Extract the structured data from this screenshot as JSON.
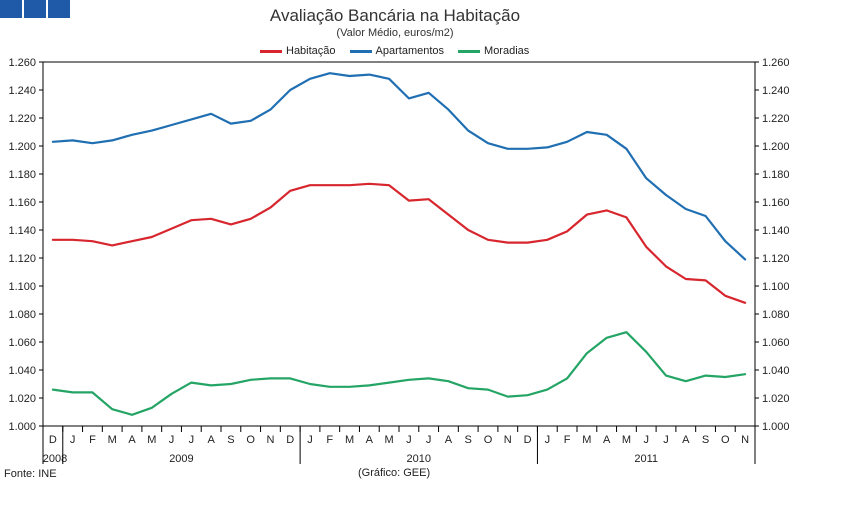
{
  "header": {
    "title": "Avaliação Bancária na Habitação",
    "subtitle": "(Valor Médio, euros/m2)"
  },
  "footer": {
    "source": "Fonte: INE",
    "credit": "(Gráfico: GEE)"
  },
  "colors": {
    "habitacao": "#d7262d",
    "apartamentos": "#1f6fb2",
    "moradias": "#24a566"
  },
  "chart_data": {
    "type": "line",
    "title": "Avaliação Bancária na Habitação",
    "subtitle": "(Valor Médio, euros/m2)",
    "xlabel": "",
    "ylabel": "",
    "ylim": [
      1000,
      1260
    ],
    "yticks": [
      1000,
      1020,
      1040,
      1060,
      1080,
      1100,
      1120,
      1140,
      1160,
      1180,
      1200,
      1220,
      1240,
      1260
    ],
    "ytick_labels": [
      "1.000",
      "1.020",
      "1.040",
      "1.060",
      "1.080",
      "1.100",
      "1.120",
      "1.140",
      "1.160",
      "1.180",
      "1.200",
      "1.220",
      "1.240",
      "1.260"
    ],
    "categories": [
      "D",
      "J",
      "F",
      "M",
      "A",
      "M",
      "J",
      "J",
      "A",
      "S",
      "O",
      "N",
      "D",
      "J",
      "F",
      "M",
      "A",
      "M",
      "J",
      "J",
      "A",
      "S",
      "O",
      "N",
      "D",
      "J",
      "F",
      "M",
      "A",
      "M",
      "J",
      "J",
      "A",
      "S",
      "O",
      "N"
    ],
    "years": [
      {
        "label": "2008",
        "start": 0,
        "end": 0
      },
      {
        "label": "2009",
        "start": 1,
        "end": 12
      },
      {
        "label": "2010",
        "start": 13,
        "end": 24
      },
      {
        "label": "2011",
        "start": 25,
        "end": 35
      }
    ],
    "legend_position": "top",
    "grid": false,
    "series": [
      {
        "name": "Habitação",
        "color_key": "habitacao",
        "values": [
          1133,
          1133,
          1132,
          1129,
          1132,
          1135,
          1141,
          1147,
          1148,
          1144,
          1148,
          1156,
          1168,
          1172,
          1172,
          1172,
          1173,
          1172,
          1161,
          1162,
          1151,
          1140,
          1133,
          1131,
          1131,
          1133,
          1139,
          1151,
          1154,
          1149,
          1128,
          1114,
          1105,
          1104,
          1093,
          1088
        ]
      },
      {
        "name": "Apartamentos",
        "color_key": "apartamentos",
        "values": [
          1203,
          1204,
          1202,
          1204,
          1208,
          1211,
          1215,
          1219,
          1223,
          1216,
          1218,
          1226,
          1240,
          1248,
          1252,
          1250,
          1251,
          1248,
          1234,
          1238,
          1226,
          1211,
          1202,
          1198,
          1198,
          1199,
          1203,
          1210,
          1208,
          1198,
          1177,
          1165,
          1155,
          1150,
          1132,
          1119
        ]
      },
      {
        "name": "Moradias",
        "color_key": "moradias",
        "values": [
          1026,
          1024,
          1024,
          1012,
          1008,
          1013,
          1023,
          1031,
          1029,
          1030,
          1033,
          1034,
          1034,
          1030,
          1028,
          1028,
          1029,
          1031,
          1033,
          1034,
          1032,
          1027,
          1026,
          1021,
          1022,
          1026,
          1034,
          1052,
          1063,
          1067,
          1053,
          1036,
          1032,
          1036,
          1035,
          1037
        ]
      }
    ]
  }
}
